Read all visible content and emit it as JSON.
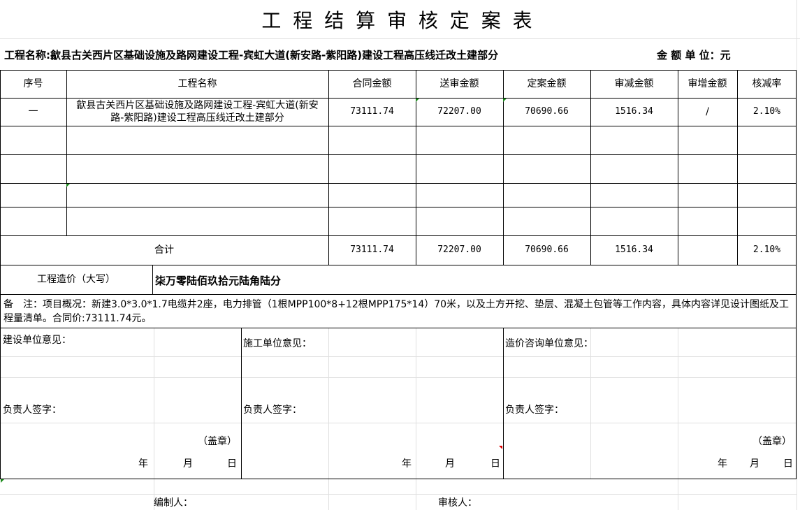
{
  "title": "工 程 结 算 审 核 定 案 表",
  "project_line": "工程名称:歙县古关西片区基础设施及路网建设工程-宾虹大道(新安路-紫阳路)建设工程高压线迁改土建部分",
  "unit_label": "金 额 单 位：元",
  "headers": [
    "序号",
    "工程名称",
    "合同金额",
    "送审金额",
    "定案金额",
    "审减金额",
    "审增金额",
    "核减率"
  ],
  "row1": {
    "no": "一",
    "name": "歙县古关西片区基础设施及路网建设工程-宾虹大道(新安路-紫阳路)建设工程高压线迁改土建部分",
    "contract": "73111.74",
    "submitted": "72207.00",
    "final": "70690.66",
    "reduced": "1516.34",
    "increased": "/",
    "rate": "2.10%"
  },
  "total": {
    "label": "合计",
    "contract": "73111.74",
    "submitted": "72207.00",
    "final": "70690.66",
    "reduced": "1516.34",
    "increased": "",
    "rate": "2.10%"
  },
  "capital": {
    "label": "工程造价（大写）",
    "value": "柒万零陆佰玖拾元陆角陆分"
  },
  "notes": "备　注：项目概况：新建3.0*3.0*1.7电缆井2座，电力排管（1根MPP100*8+12根MPP175*14）70米，以及土方开挖、垫层、混凝土包管等工作内容，具体内容详见设计图纸及工程量清单。合同价:73111.74元。",
  "opinions": [
    {
      "label": "建设单位意见：",
      "sign": "负责人签字：",
      "seal": "（盖章）",
      "date": [
        "年",
        "月",
        "日"
      ]
    },
    {
      "label": "施工单位意见：",
      "sign": "负责人签字：",
      "seal": "",
      "date": [
        "年",
        "月",
        "日"
      ]
    },
    {
      "label": "造价咨询单位意见：",
      "sign": "负责人签字：",
      "seal": "（盖章）",
      "date": [
        "年",
        "月",
        "日"
      ]
    }
  ],
  "compiler": "编制人：",
  "reviewer": "审核人："
}
